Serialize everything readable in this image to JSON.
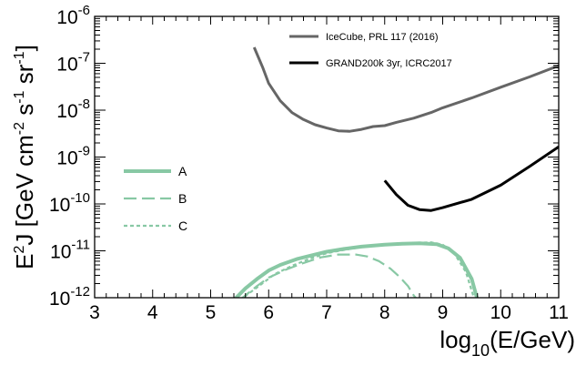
{
  "chart_data": {
    "type": "line",
    "xlabel": {
      "base": "log",
      "sub": "10",
      "rest": "(E/GeV)"
    },
    "ylabel": {
      "parts": [
        {
          "t": "E",
          "s": "n"
        },
        {
          "t": "2",
          "s": "sup"
        },
        {
          "t": "J [GeV cm",
          "s": "n"
        },
        {
          "t": "-2",
          "s": "sup"
        },
        {
          "t": " s",
          "s": "n"
        },
        {
          "t": "-1",
          "s": "sup"
        },
        {
          "t": " sr",
          "s": "n"
        },
        {
          "t": "-1",
          "s": "sup"
        },
        {
          "t": "]",
          "s": "n"
        }
      ]
    },
    "xlim": [
      3,
      11
    ],
    "ylim_log10": [
      -12,
      -6
    ],
    "y_scale": "log",
    "x_ticks": [
      "3",
      "4",
      "5",
      "6",
      "7",
      "8",
      "9",
      "10",
      "11"
    ],
    "y_ticks": [
      {
        "base": "10",
        "exp": "-12"
      },
      {
        "base": "10",
        "exp": "-11"
      },
      {
        "base": "10",
        "exp": "-10"
      },
      {
        "base": "10",
        "exp": "-9"
      },
      {
        "base": "10",
        "exp": "-8"
      },
      {
        "base": "10",
        "exp": "-7"
      },
      {
        "base": "10",
        "exp": "-6"
      }
    ],
    "grid": false,
    "series": [
      {
        "name": "IceCube, PRL 117 (2016)",
        "legend": "top-right",
        "color": "#666666",
        "style": "solid",
        "x": [
          5.75,
          5.9,
          6.0,
          6.2,
          6.4,
          6.6,
          6.8,
          7.0,
          7.2,
          7.4,
          7.6,
          7.8,
          8.0,
          8.2,
          8.5,
          8.8,
          9.0,
          9.5,
          10.0,
          10.5,
          11.0
        ],
        "log10_y": [
          -6.66,
          -7.1,
          -7.43,
          -7.8,
          -8.05,
          -8.2,
          -8.31,
          -8.38,
          -8.44,
          -8.45,
          -8.41,
          -8.35,
          -8.33,
          -8.26,
          -8.17,
          -8.05,
          -7.95,
          -7.74,
          -7.51,
          -7.29,
          -7.05
        ]
      },
      {
        "name": "GRAND200k 3yr, ICRC2017",
        "legend": "top-right",
        "color": "#000000",
        "style": "solid",
        "x": [
          8.0,
          8.2,
          8.4,
          8.6,
          8.8,
          9.0,
          9.5,
          10.0,
          10.5,
          11.0
        ],
        "log10_y": [
          -9.5,
          -9.8,
          -10.03,
          -10.12,
          -10.14,
          -10.08,
          -9.9,
          -9.6,
          -9.2,
          -8.78
        ]
      },
      {
        "name": "A",
        "legend": "left",
        "color": "#88c8a4",
        "style": "solid-thick",
        "x": [
          5.4,
          5.6,
          5.8,
          6.0,
          6.2,
          6.5,
          6.8,
          7.0,
          7.3,
          7.6,
          8.0,
          8.3,
          8.6,
          8.9,
          9.1,
          9.3,
          9.5,
          9.6
        ],
        "log10_y": [
          -12.05,
          -11.8,
          -11.6,
          -11.42,
          -11.3,
          -11.17,
          -11.08,
          -11.02,
          -10.96,
          -10.91,
          -10.87,
          -10.85,
          -10.84,
          -10.86,
          -10.95,
          -11.15,
          -11.6,
          -12.05
        ]
      },
      {
        "name": "B",
        "legend": "left",
        "color": "#88c8a4",
        "style": "long-dash",
        "x": [
          5.5,
          5.8,
          6.0,
          6.3,
          6.6,
          6.9,
          7.2,
          7.5,
          7.7,
          7.9,
          8.1,
          8.25,
          8.4,
          8.5,
          8.6
        ],
        "log10_y": [
          -12.05,
          -11.75,
          -11.57,
          -11.4,
          -11.26,
          -11.14,
          -11.08,
          -11.08,
          -11.12,
          -11.22,
          -11.38,
          -11.55,
          -11.75,
          -11.95,
          -12.1
        ]
      },
      {
        "name": "C",
        "legend": "left",
        "color": "#88c8a4",
        "style": "short-dash",
        "x": [
          5.5,
          5.8,
          6.1,
          6.4,
          6.7,
          7.0,
          7.3,
          7.6,
          7.9,
          8.2,
          8.5,
          8.8,
          9.0,
          9.2,
          9.4,
          9.55
        ],
        "log10_y": [
          -12.05,
          -11.78,
          -11.5,
          -11.32,
          -11.17,
          -11.05,
          -10.98,
          -10.92,
          -10.88,
          -10.85,
          -10.83,
          -10.82,
          -10.87,
          -11.05,
          -11.45,
          -12.05
        ]
      }
    ]
  }
}
